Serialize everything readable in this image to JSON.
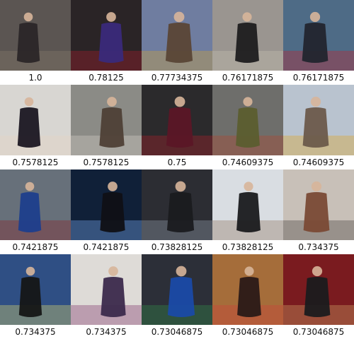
{
  "results": [
    {
      "score": "1.0",
      "bg": "#5b5552",
      "fg": "#2b2628",
      "accent": "#8a7d6e"
    },
    {
      "score": "0.78125",
      "bg": "#2a2426",
      "fg": "#3a2a7a",
      "accent": "#b01c2e"
    },
    {
      "score": "0.77734375",
      "bg": "#6f7da0",
      "fg": "#5a4636",
      "accent": "#d3a533"
    },
    {
      "score": "0.76171875",
      "bg": "#9a9590",
      "fg": "#1d1c1f",
      "accent": "#c9c2b4"
    },
    {
      "score": "0.76171875",
      "bg": "#4e6b86",
      "fg": "#22252e",
      "accent": "#c8232a"
    },
    {
      "score": "0.7578125",
      "bg": "#d8d6d2",
      "fg": "#1b1722",
      "accent": "#e8d3c3"
    },
    {
      "score": "0.7578125",
      "bg": "#8b8b86",
      "fg": "#4e4036",
      "accent": "#d9d4cc"
    },
    {
      "score": "0.75",
      "bg": "#2b2a2c",
      "fg": "#5b1626",
      "accent": "#b21f2b"
    },
    {
      "score": "0.74609375",
      "bg": "#6e6e6b",
      "fg": "#5b5d2f",
      "accent": "#b6452b"
    },
    {
      "score": "0.74609375",
      "bg": "#b9c3cf",
      "fg": "#6b5a4b",
      "accent": "#e3a21b"
    },
    {
      "score": "0.7421875",
      "bg": "#67707a",
      "fg": "#1d3e8c",
      "accent": "#8a1f25"
    },
    {
      "score": "0.7421875",
      "bg": "#102038",
      "fg": "#101015",
      "accent": "#7db4ff"
    },
    {
      "score": "0.73828125",
      "bg": "#2c2d33",
      "fg": "#1a1b1f",
      "accent": "#9aa6b4"
    },
    {
      "score": "0.73828125",
      "bg": "#d9dde2",
      "fg": "#1a1a1d",
      "accent": "#8b6f59"
    },
    {
      "score": "0.734375",
      "bg": "#c8c0b8",
      "fg": "#7a4a35",
      "accent": "#3f3a36"
    },
    {
      "score": "0.734375",
      "bg": "#2f4f84",
      "fg": "#151616",
      "accent": "#e7e06b"
    },
    {
      "score": "0.734375",
      "bg": "#dedbd7",
      "fg": "#3b2a4c",
      "accent": "#7a2b65"
    },
    {
      "score": "0.73046875",
      "bg": "#2c2f38",
      "fg": "#1a4aa6",
      "accent": "#35934a"
    },
    {
      "score": "0.73046875",
      "bg": "#a56d3a",
      "fg": "#2a1a17",
      "accent": "#d03c3c"
    },
    {
      "score": "0.73046875",
      "bg": "#7a1b1f",
      "fg": "#1b1b1d",
      "accent": "#d3ad6a"
    }
  ]
}
